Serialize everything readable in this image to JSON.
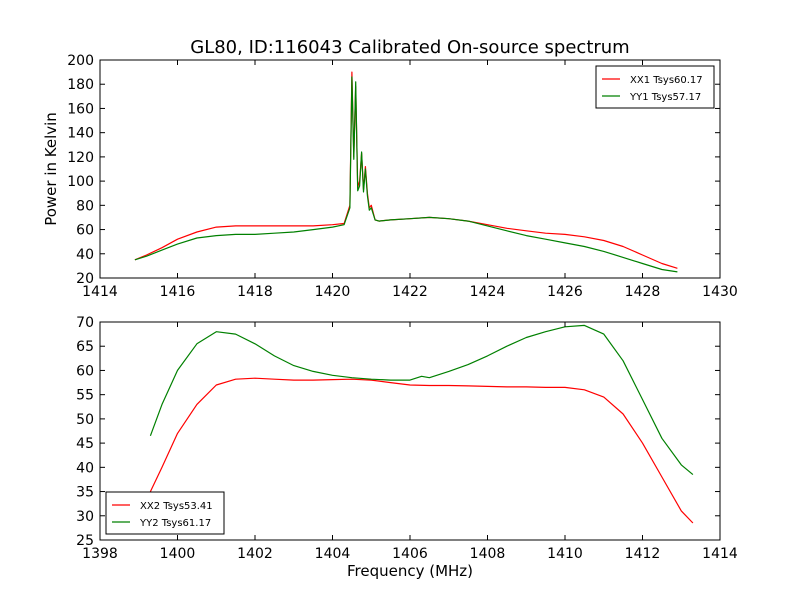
{
  "figure": {
    "title": "GL80, ID:116043 Calibrated On-source spectrum",
    "shared_xlabel": "Frequency (MHz)"
  },
  "chart_data": [
    {
      "type": "line",
      "title": "GL80, ID:116043 Calibrated On-source spectrum",
      "xlabel": "",
      "ylabel": "Power in Kelvin",
      "xlim": [
        1414,
        1430
      ],
      "ylim": [
        20,
        200
      ],
      "xticks": [
        1414,
        1416,
        1418,
        1420,
        1422,
        1424,
        1426,
        1428,
        1430
      ],
      "yticks": [
        20,
        40,
        60,
        80,
        100,
        120,
        140,
        160,
        180,
        200
      ],
      "grid": false,
      "legend_position": "upper-right",
      "series": [
        {
          "name": "XX1 Tsys60.17",
          "color": "#ff0000",
          "x": [
            1414.9,
            1415.2,
            1415.6,
            1416.0,
            1416.5,
            1417.0,
            1417.5,
            1418.0,
            1418.5,
            1419.0,
            1419.5,
            1420.0,
            1420.3,
            1420.45,
            1420.5,
            1420.55,
            1420.6,
            1420.65,
            1420.7,
            1420.75,
            1420.8,
            1420.85,
            1420.9,
            1420.95,
            1421.0,
            1421.1,
            1421.2,
            1421.5,
            1422.0,
            1422.5,
            1423.0,
            1423.5,
            1424.0,
            1424.5,
            1425.0,
            1425.5,
            1426.0,
            1426.5,
            1427.0,
            1427.5,
            1428.0,
            1428.5,
            1428.9
          ],
          "y": [
            35,
            39,
            45,
            52,
            58,
            62,
            63,
            63,
            63,
            63,
            63,
            64,
            65,
            80,
            190,
            120,
            178,
            95,
            100,
            123,
            93,
            112,
            90,
            78,
            80,
            68,
            67,
            68,
            69,
            70,
            69,
            67,
            64,
            61,
            59,
            57,
            56,
            54,
            51,
            46,
            39,
            32,
            28
          ]
        },
        {
          "name": "YY1 Tsys57.17",
          "color": "#008000",
          "x": [
            1414.9,
            1415.2,
            1415.6,
            1416.0,
            1416.5,
            1417.0,
            1417.5,
            1418.0,
            1418.5,
            1419.0,
            1419.5,
            1420.0,
            1420.3,
            1420.45,
            1420.5,
            1420.55,
            1420.6,
            1420.65,
            1420.7,
            1420.75,
            1420.8,
            1420.85,
            1420.9,
            1420.95,
            1421.0,
            1421.1,
            1421.2,
            1421.5,
            1422.0,
            1422.5,
            1423.0,
            1423.5,
            1424.0,
            1424.5,
            1425.0,
            1425.5,
            1426.0,
            1426.5,
            1427.0,
            1427.5,
            1428.0,
            1428.5,
            1428.9
          ],
          "y": [
            35,
            38,
            43,
            48,
            53,
            55,
            56,
            56,
            57,
            58,
            60,
            62,
            64,
            78,
            186,
            118,
            182,
            92,
            96,
            124,
            91,
            110,
            88,
            76,
            78,
            68,
            67,
            68,
            69,
            70,
            69,
            67,
            63,
            59,
            55,
            52,
            49,
            46,
            42,
            37,
            32,
            27,
            25
          ]
        }
      ]
    },
    {
      "type": "line",
      "title": "",
      "xlabel": "Frequency (MHz)",
      "ylabel": "",
      "xlim": [
        1398,
        1414
      ],
      "ylim": [
        25,
        70
      ],
      "xticks": [
        1398,
        1400,
        1402,
        1404,
        1406,
        1408,
        1410,
        1412,
        1414
      ],
      "yticks": [
        25,
        30,
        35,
        40,
        45,
        50,
        55,
        60,
        65,
        70
      ],
      "grid": false,
      "legend_position": "lower-left",
      "series": [
        {
          "name": "XX2 Tsys53.41",
          "color": "#ff0000",
          "x": [
            1399.3,
            1399.6,
            1400.0,
            1400.5,
            1401.0,
            1401.5,
            1402.0,
            1402.5,
            1403.0,
            1403.5,
            1404.0,
            1404.5,
            1405.0,
            1405.5,
            1406.0,
            1406.5,
            1407.0,
            1407.5,
            1408.0,
            1408.5,
            1409.0,
            1409.5,
            1410.0,
            1410.5,
            1411.0,
            1411.5,
            1412.0,
            1412.5,
            1413.0,
            1413.3
          ],
          "y": [
            35,
            40,
            47,
            53,
            57,
            58.2,
            58.4,
            58.2,
            58.0,
            58.0,
            58.1,
            58.2,
            58.0,
            57.5,
            57.0,
            56.9,
            56.9,
            56.8,
            56.7,
            56.6,
            56.6,
            56.5,
            56.5,
            56.0,
            54.5,
            51,
            45,
            38,
            31,
            28.5
          ]
        },
        {
          "name": "YY2 Tsys61.17",
          "color": "#008000",
          "x": [
            1399.3,
            1399.6,
            1400.0,
            1400.5,
            1401.0,
            1401.5,
            1402.0,
            1402.5,
            1403.0,
            1403.5,
            1404.0,
            1404.5,
            1405.0,
            1405.5,
            1406.0,
            1406.3,
            1406.5,
            1407.0,
            1407.5,
            1408.0,
            1408.5,
            1409.0,
            1409.5,
            1410.0,
            1410.5,
            1411.0,
            1411.5,
            1412.0,
            1412.5,
            1413.0,
            1413.3
          ],
          "y": [
            46.5,
            53,
            60,
            65.5,
            68,
            67.5,
            65.5,
            63,
            61,
            59.8,
            59,
            58.5,
            58.2,
            58.0,
            58.0,
            58.8,
            58.5,
            59.8,
            61.2,
            63,
            65,
            66.8,
            68.0,
            69.0,
            69.3,
            67.5,
            62,
            54,
            46,
            40.5,
            38.5
          ]
        }
      ]
    }
  ]
}
